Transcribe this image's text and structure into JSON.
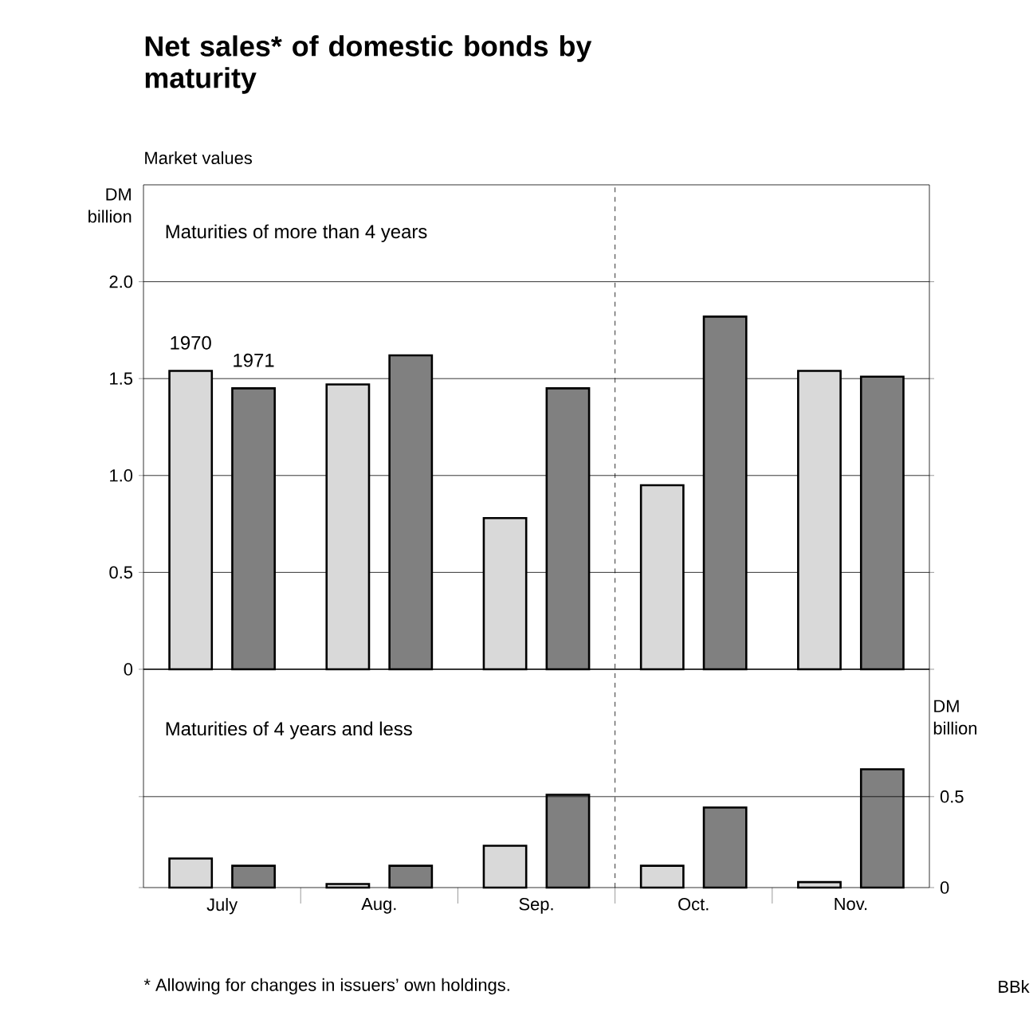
{
  "chart_data": [
    {
      "type": "bar",
      "title": "Net sales* of domestic bonds by maturity",
      "subtitle": "Market values",
      "ylabel": "DM billion",
      "categories": [
        null,
        null,
        null,
        null,
        null
      ],
      "series": [
        {
          "name": "1970",
          "color": "#d9d9d9",
          "values": [
            1.54,
            1.47,
            0.78,
            0.95,
            1.54
          ]
        },
        {
          "name": "1971",
          "color": "#808080",
          "values": [
            1.45,
            1.62,
            1.45,
            1.82,
            1.51
          ]
        }
      ],
      "ylim": [
        0,
        2.5
      ],
      "yticks": [
        0,
        0.5,
        {
          "value": 1,
          "label": "1.0"
        },
        1.5,
        {
          "value": 2,
          "label": "2.0"
        }
      ],
      "grid": "y",
      "legend": "top left",
      "tick_labels": "y",
      "annotations": [
        "Maturities of more than 4 years"
      ]
    },
    {
      "type": "bar",
      "ylabel": "DM billion",
      "categories": [
        "July",
        "Aug.",
        "Sep.",
        "Oct.",
        "Nov."
      ],
      "series": [
        {
          "color": "#d9d9d9",
          "values": [
            0.16,
            0.02,
            0.23,
            0.12,
            0.03
          ]
        },
        {
          "color": "#808080",
          "values": [
            0.12,
            0.12,
            0.51,
            0.44,
            0.65
          ]
        }
      ],
      "ylim": [
        0,
        1.2
      ],
      "yticks": [
        0,
        0.5
      ],
      "ref_lines": [
        {
          "axis": "y",
          "value": 0.5
        }
      ],
      "annotations": [
        "Maturities of 4 years and less",
        "* Allowing for changes in issuers’ own holdings.",
        "BBk"
      ]
    }
  ]
}
